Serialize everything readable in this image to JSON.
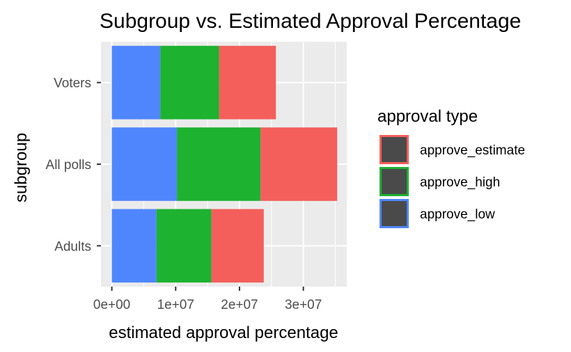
{
  "chart_data": {
    "type": "bar",
    "orientation": "horizontal",
    "stacked": true,
    "title": "Subgroup vs. Estimated Approval Percentage",
    "xlabel": "estimated approval percentage",
    "ylabel": "subgroup",
    "categories": [
      "Voters",
      "All polls",
      "Adults"
    ],
    "series": [
      {
        "name": "approve_low",
        "color": "#4f86fd",
        "values": [
          7600000,
          10200000,
          7000000
        ]
      },
      {
        "name": "approve_high",
        "color": "#1db22f",
        "values": [
          9200000,
          13100000,
          8600000
        ]
      },
      {
        "name": "approve_estimate",
        "color": "#f45f5b",
        "values": [
          8900000,
          12000000,
          8200000
        ]
      }
    ],
    "xlim": [
      -1700000,
      36800000
    ],
    "x_ticks": [
      0,
      10000000,
      20000000,
      30000000
    ],
    "x_tick_labels": [
      "0e+00",
      "1e+07",
      "2e+07",
      "3e+07"
    ],
    "grid": true,
    "panel_background": "#ebebeb",
    "legend": {
      "title": "approval type",
      "position": "right",
      "items": [
        "approve_estimate",
        "approve_high",
        "approve_low"
      ]
    }
  }
}
